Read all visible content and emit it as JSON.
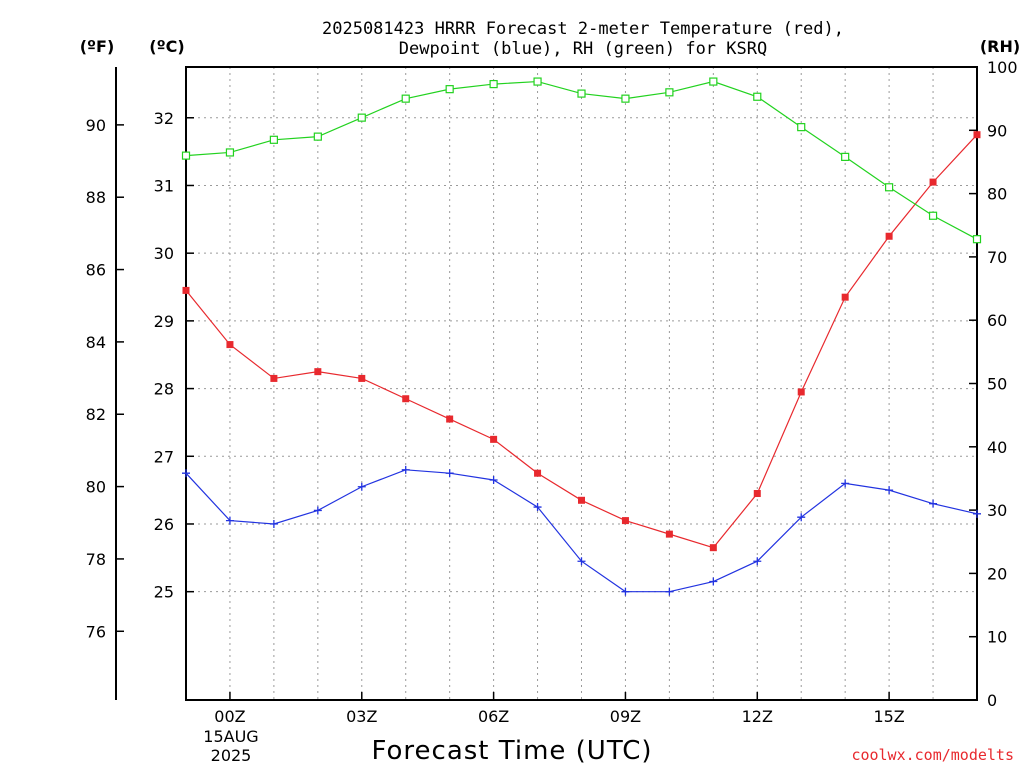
{
  "chart_data": {
    "type": "line",
    "title": [
      "2025081423 HRRR Forecast 2-meter Temperature (red),",
      "Dewpoint (blue), RH (green) for KSRQ"
    ],
    "xlabel": "Forecast Time (UTC)",
    "x_hours": [
      -1,
      0,
      1,
      2,
      3,
      4,
      5,
      6,
      7,
      8,
      9,
      10,
      11,
      12,
      13,
      14,
      15,
      16,
      17
    ],
    "x_tick_hours": [
      0,
      3,
      6,
      9,
      12,
      15
    ],
    "x_tick_labels": [
      "00Z",
      "03Z",
      "06Z",
      "09Z",
      "12Z",
      "15Z"
    ],
    "x_date_line1": "15AUG",
    "x_date_line2": "2025",
    "left_axis_f": {
      "unit": "(ºF)",
      "ticks": [
        76,
        78,
        80,
        82,
        84,
        86,
        88,
        90
      ],
      "ylim": [
        74.1,
        91.6
      ]
    },
    "left_axis_c": {
      "unit": "(ºC)",
      "ticks": [
        25,
        26,
        27,
        28,
        29,
        30,
        31,
        32
      ],
      "ylim": [
        23.4,
        32.75
      ]
    },
    "right_axis_rh": {
      "unit": "(RH)",
      "ticks": [
        0,
        10,
        20,
        30,
        40,
        50,
        60,
        70,
        80,
        90,
        100
      ],
      "ylim": [
        0,
        100
      ]
    },
    "series": [
      {
        "color": "#e8292e",
        "marker": "filled-square",
        "axis": "celsius",
        "values": [
          29.45,
          28.65,
          28.15,
          28.25,
          28.15,
          27.85,
          27.55,
          27.25,
          26.75,
          26.35,
          26.05,
          25.85,
          25.65,
          26.45,
          27.95,
          29.35,
          30.25,
          31.05,
          31.75
        ]
      },
      {
        "color": "#2233e0",
        "marker": "plus",
        "axis": "celsius",
        "values": [
          26.75,
          26.05,
          26.0,
          26.2,
          26.55,
          26.8,
          26.75,
          26.65,
          26.25,
          25.45,
          25.0,
          25.0,
          25.15,
          25.45,
          26.1,
          26.6,
          26.5,
          26.3,
          26.15
        ]
      },
      {
        "color": "#22d21f",
        "marker": "open-square",
        "axis": "rh",
        "values": [
          86,
          86.5,
          88.5,
          89,
          92,
          95,
          96.5,
          97.3,
          97.7,
          95.8,
          95,
          96,
          97.7,
          95.3,
          90.5,
          85.8,
          81,
          76.5,
          72.8
        ]
      }
    ],
    "grid": true,
    "credit": "coolwx.com/modelts"
  }
}
